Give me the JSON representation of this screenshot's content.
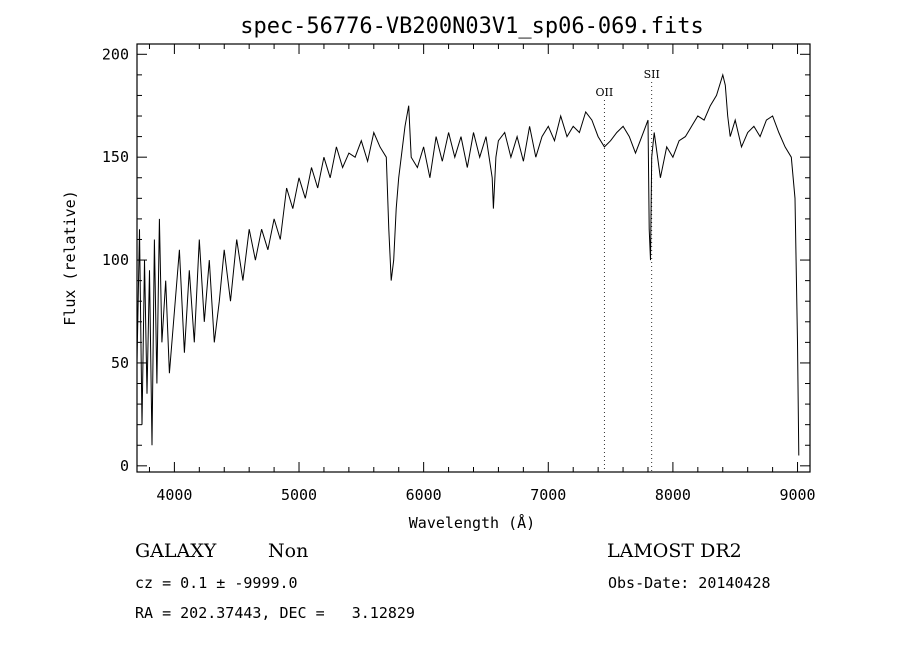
{
  "chart_data": {
    "type": "line",
    "title": "spec-56776-VB200N03V1_sp06-069.fits",
    "xlabel": "Wavelength (Å)",
    "ylabel": "Flux (relative)",
    "xlim": [
      3700,
      9100
    ],
    "ylim": [
      -3,
      205
    ],
    "xticks": [
      4000,
      5000,
      6000,
      7000,
      8000,
      9000
    ],
    "yticks": [
      0,
      50,
      100,
      150,
      200
    ],
    "grid": false,
    "line_color": "#000000",
    "series": [
      {
        "x": [
          3700,
          3720,
          3740,
          3760,
          3780,
          3800,
          3820,
          3840,
          3860,
          3880,
          3900,
          3930,
          3960,
          4000,
          4040,
          4080,
          4120,
          4160,
          4200,
          4240,
          4280,
          4320,
          4360,
          4400,
          4450,
          4500,
          4550,
          4600,
          4650,
          4700,
          4750,
          4800,
          4850,
          4900,
          4950,
          5000,
          5050,
          5100,
          5150,
          5200,
          5250,
          5300,
          5350,
          5400,
          5450,
          5500,
          5550,
          5600,
          5650,
          5700,
          5720,
          5740,
          5760,
          5780,
          5800,
          5850,
          5880,
          5900,
          5950,
          6000,
          6050,
          6100,
          6150,
          6200,
          6250,
          6300,
          6350,
          6400,
          6450,
          6500,
          6550,
          6560,
          6580,
          6600,
          6650,
          6700,
          6750,
          6800,
          6850,
          6900,
          6950,
          7000,
          7050,
          7100,
          7150,
          7200,
          7250,
          7300,
          7350,
          7400,
          7450,
          7500,
          7550,
          7600,
          7650,
          7700,
          7750,
          7800,
          7810,
          7820,
          7830,
          7850,
          7900,
          7950,
          8000,
          8050,
          8100,
          8150,
          8200,
          8250,
          8300,
          8350,
          8400,
          8420,
          8440,
          8460,
          8500,
          8550,
          8600,
          8650,
          8700,
          8750,
          8800,
          8850,
          8900,
          8950,
          8980,
          9000,
          9010
        ],
        "y": [
          50,
          115,
          20,
          100,
          35,
          95,
          10,
          110,
          40,
          120,
          60,
          90,
          45,
          75,
          105,
          55,
          95,
          60,
          110,
          70,
          100,
          60,
          80,
          105,
          80,
          110,
          90,
          115,
          100,
          115,
          105,
          120,
          110,
          135,
          125,
          140,
          130,
          145,
          135,
          150,
          140,
          155,
          145,
          152,
          150,
          158,
          148,
          162,
          155,
          150,
          115,
          90,
          100,
          125,
          140,
          165,
          175,
          150,
          145,
          155,
          140,
          160,
          148,
          162,
          150,
          160,
          145,
          162,
          150,
          160,
          140,
          125,
          150,
          158,
          162,
          150,
          160,
          148,
          165,
          150,
          160,
          165,
          158,
          170,
          160,
          165,
          162,
          172,
          168,
          160,
          155,
          158,
          162,
          165,
          160,
          152,
          160,
          168,
          115,
          100,
          150,
          162,
          140,
          155,
          150,
          158,
          160,
          165,
          170,
          168,
          175,
          180,
          190,
          185,
          170,
          160,
          168,
          155,
          162,
          165,
          160,
          168,
          170,
          162,
          155,
          150,
          130,
          60,
          5
        ]
      }
    ],
    "annotations": [
      {
        "label": "OII",
        "x": 7450
      },
      {
        "label": "SII",
        "x": 7830
      }
    ]
  },
  "info": {
    "class": "GALAXY",
    "subclass": "Non",
    "survey": "LAMOST DR2",
    "cz": "cz = 0.1 ± -9999.0",
    "obs_date": "Obs-Date: 20140428",
    "coords": "RA = 202.37443, DEC =   3.12829"
  }
}
